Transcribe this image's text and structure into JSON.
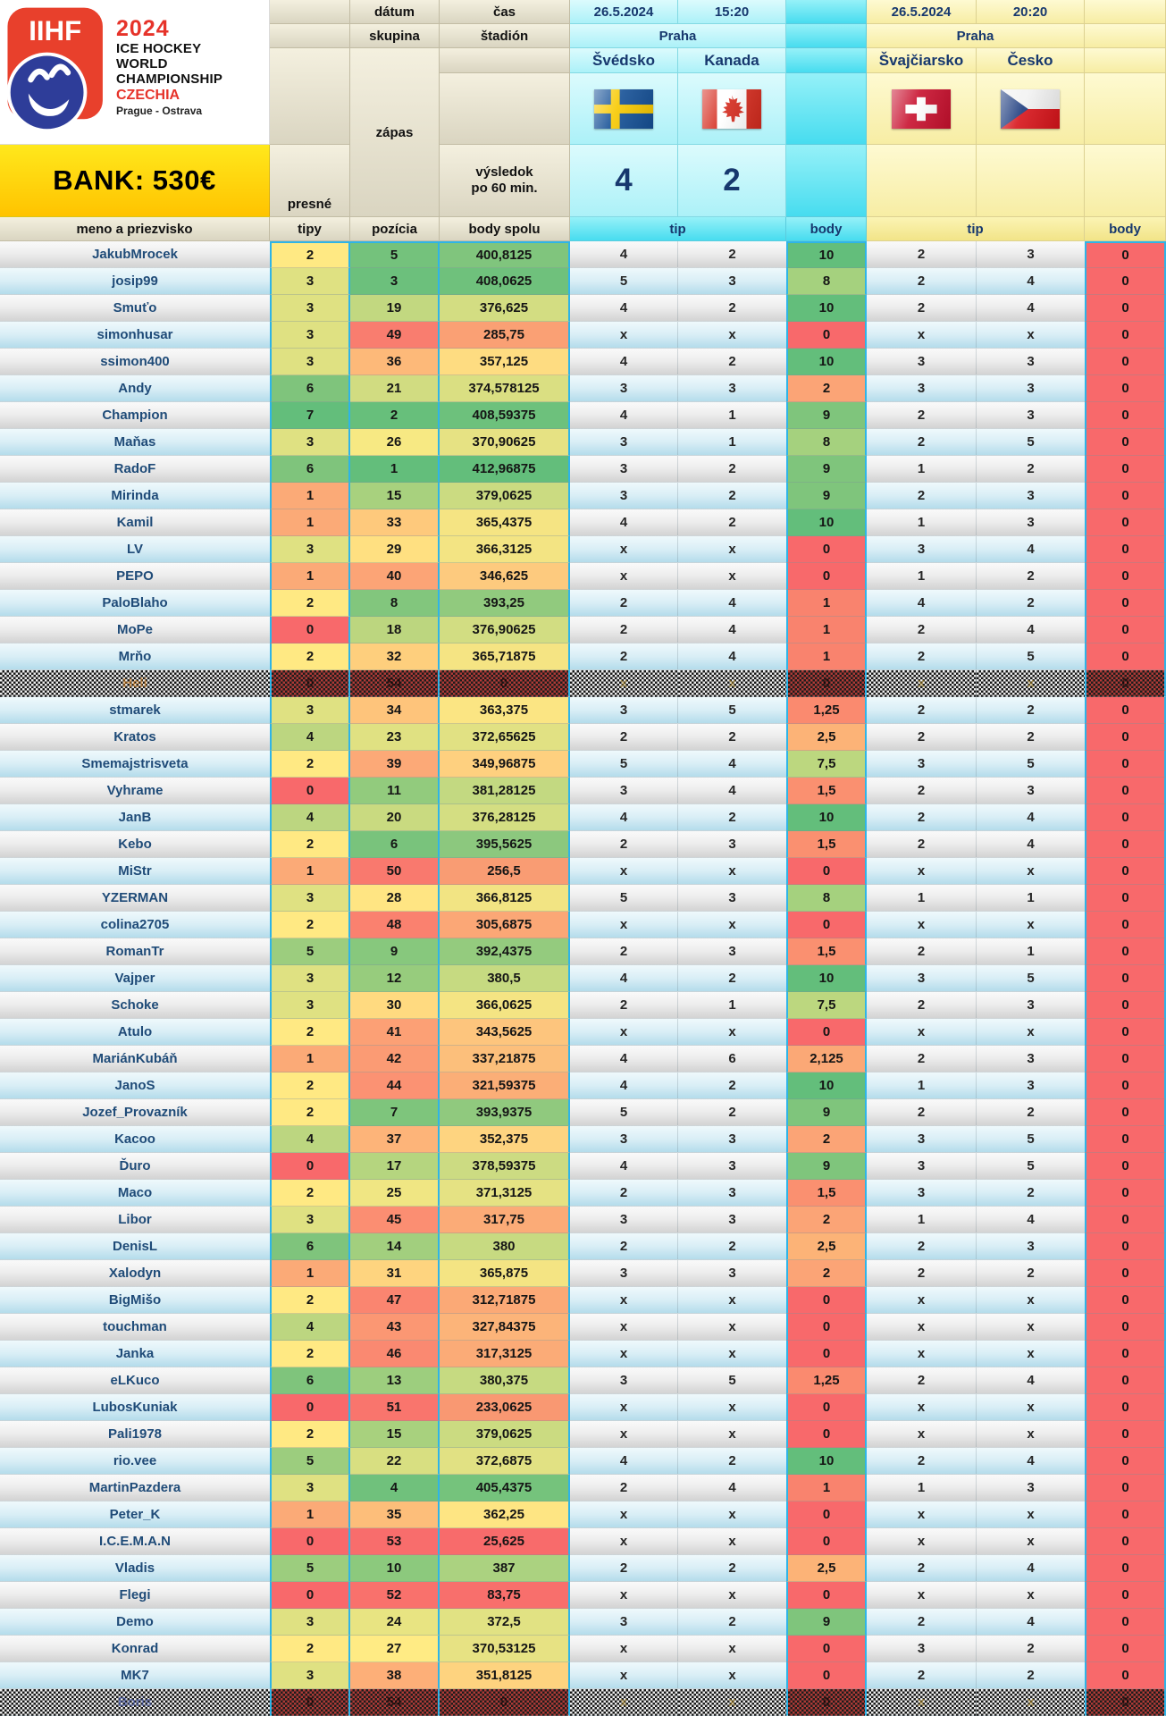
{
  "header": {
    "logo": {
      "iihf": "IIHF",
      "year": "2024",
      "title_lines": [
        "ICE HOCKEY",
        "WORLD",
        "CHAMPIONSHIP"
      ],
      "country": "CZECHIA",
      "cities": "Prague - Ostrava"
    },
    "bank": "BANK: 530€",
    "labels": {
      "datum": "dátum",
      "skupina": "skupina",
      "zapas": "zápas",
      "cas": "čas",
      "stadion": "štadión",
      "vysledok_line1": "výsledok",
      "vysledok_line2": "po 60 min.",
      "presne": "presné",
      "tipy": "tipy",
      "meno": "meno a priezvisko",
      "pozicia": "pozícia",
      "body_spolu": "body spolu",
      "tip": "tip",
      "body": "body"
    },
    "matches": [
      {
        "date": "26.5.2024",
        "time": "15:20",
        "venue": "Praha",
        "home": "Švédsko",
        "away": "Kanada",
        "home_flag": "sweden",
        "away_flag": "canada",
        "score_home": "4",
        "score_away": "2"
      },
      {
        "date": "26.5.2024",
        "time": "20:20",
        "venue": "Praha",
        "home": "Švajčiarsko",
        "away": "Česko",
        "home_flag": "switzerland",
        "away_flag": "czechia",
        "score_home": "",
        "score_away": ""
      }
    ],
    "accent_colors": {
      "cell_border_blue": "#2FB4E7",
      "scale_green": "#63BE7B",
      "scale_yellow": "#FFEB84",
      "scale_red": "#F8696B"
    }
  },
  "rows": [
    {
      "n": "JakubMrocek",
      "t": "2",
      "p": "5",
      "b": "400,8125",
      "m1": [
        "4",
        "2",
        "10"
      ],
      "m2": [
        "2",
        "3",
        "0"
      ]
    },
    {
      "n": "josip99",
      "t": "3",
      "p": "3",
      "b": "408,0625",
      "m1": [
        "5",
        "3",
        "8"
      ],
      "m2": [
        "2",
        "4",
        "0"
      ]
    },
    {
      "n": "Smuťo",
      "t": "3",
      "p": "19",
      "b": "376,625",
      "m1": [
        "4",
        "2",
        "10"
      ],
      "m2": [
        "2",
        "4",
        "0"
      ]
    },
    {
      "n": "simonhusar",
      "t": "3",
      "p": "49",
      "b": "285,75",
      "m1": [
        "x",
        "x",
        "0"
      ],
      "m2": [
        "x",
        "x",
        "0"
      ]
    },
    {
      "n": "ssimon400",
      "t": "3",
      "p": "36",
      "b": "357,125",
      "m1": [
        "4",
        "2",
        "10"
      ],
      "m2": [
        "3",
        "3",
        "0"
      ]
    },
    {
      "n": "Andy",
      "t": "6",
      "p": "21",
      "b": "374,578125",
      "m1": [
        "3",
        "3",
        "2"
      ],
      "m2": [
        "3",
        "3",
        "0"
      ]
    },
    {
      "n": "Champion",
      "t": "7",
      "p": "2",
      "b": "408,59375",
      "m1": [
        "4",
        "1",
        "9"
      ],
      "m2": [
        "2",
        "3",
        "0"
      ]
    },
    {
      "n": "Maňas",
      "t": "3",
      "p": "26",
      "b": "370,90625",
      "m1": [
        "3",
        "1",
        "8"
      ],
      "m2": [
        "2",
        "5",
        "0"
      ]
    },
    {
      "n": "RadoF",
      "t": "6",
      "p": "1",
      "b": "412,96875",
      "m1": [
        "3",
        "2",
        "9"
      ],
      "m2": [
        "1",
        "2",
        "0"
      ]
    },
    {
      "n": "Mirinda",
      "t": "1",
      "p": "15",
      "b": "379,0625",
      "m1": [
        "3",
        "2",
        "9"
      ],
      "m2": [
        "2",
        "3",
        "0"
      ]
    },
    {
      "n": "Kamil",
      "t": "1",
      "p": "33",
      "b": "365,4375",
      "m1": [
        "4",
        "2",
        "10"
      ],
      "m2": [
        "1",
        "3",
        "0"
      ]
    },
    {
      "n": "LV",
      "t": "3",
      "p": "29",
      "b": "366,3125",
      "m1": [
        "x",
        "x",
        "0"
      ],
      "m2": [
        "3",
        "4",
        "0"
      ]
    },
    {
      "n": "PEPO",
      "t": "1",
      "p": "40",
      "b": "346,625",
      "m1": [
        "x",
        "x",
        "0"
      ],
      "m2": [
        "1",
        "2",
        "0"
      ]
    },
    {
      "n": "PaloBlaho",
      "t": "2",
      "p": "8",
      "b": "393,25",
      "m1": [
        "2",
        "4",
        "1"
      ],
      "m2": [
        "4",
        "2",
        "0"
      ]
    },
    {
      "n": "MoPe",
      "t": "0",
      "p": "18",
      "b": "376,90625",
      "m1": [
        "2",
        "4",
        "1"
      ],
      "m2": [
        "2",
        "4",
        "0"
      ]
    },
    {
      "n": "Mrňo",
      "t": "2",
      "p": "32",
      "b": "365,71875",
      "m1": [
        "2",
        "4",
        "1"
      ],
      "m2": [
        "2",
        "5",
        "0"
      ]
    },
    {
      "n": "Heli",
      "t": "0",
      "p": "54",
      "b": "0",
      "m1": [
        "x",
        "x",
        "0"
      ],
      "m2": [
        "x",
        "x",
        "0"
      ],
      "obscured": true
    },
    {
      "n": "stmarek",
      "t": "3",
      "p": "34",
      "b": "363,375",
      "m1": [
        "3",
        "5",
        "1,25"
      ],
      "m2": [
        "2",
        "2",
        "0"
      ]
    },
    {
      "n": "Kratos",
      "t": "4",
      "p": "23",
      "b": "372,65625",
      "m1": [
        "2",
        "2",
        "2,5"
      ],
      "m2": [
        "2",
        "2",
        "0"
      ]
    },
    {
      "n": "Smemajstrisveta",
      "t": "2",
      "p": "39",
      "b": "349,96875",
      "m1": [
        "5",
        "4",
        "7,5"
      ],
      "m2": [
        "3",
        "5",
        "0"
      ]
    },
    {
      "n": "Vyhrame",
      "t": "0",
      "p": "11",
      "b": "381,28125",
      "m1": [
        "3",
        "4",
        "1,5"
      ],
      "m2": [
        "2",
        "3",
        "0"
      ]
    },
    {
      "n": "JanB",
      "t": "4",
      "p": "20",
      "b": "376,28125",
      "m1": [
        "4",
        "2",
        "10"
      ],
      "m2": [
        "2",
        "4",
        "0"
      ]
    },
    {
      "n": "Kebo",
      "t": "2",
      "p": "6",
      "b": "395,5625",
      "m1": [
        "2",
        "3",
        "1,5"
      ],
      "m2": [
        "2",
        "4",
        "0"
      ]
    },
    {
      "n": "MiStr",
      "t": "1",
      "p": "50",
      "b": "256,5",
      "m1": [
        "x",
        "x",
        "0"
      ],
      "m2": [
        "x",
        "x",
        "0"
      ]
    },
    {
      "n": "YZERMAN",
      "t": "3",
      "p": "28",
      "b": "366,8125",
      "m1": [
        "5",
        "3",
        "8"
      ],
      "m2": [
        "1",
        "1",
        "0"
      ]
    },
    {
      "n": "colina2705",
      "t": "2",
      "p": "48",
      "b": "305,6875",
      "m1": [
        "x",
        "x",
        "0"
      ],
      "m2": [
        "x",
        "x",
        "0"
      ]
    },
    {
      "n": "RomanTr",
      "t": "5",
      "p": "9",
      "b": "392,4375",
      "m1": [
        "2",
        "3",
        "1,5"
      ],
      "m2": [
        "2",
        "1",
        "0"
      ]
    },
    {
      "n": "Vajper",
      "t": "3",
      "p": "12",
      "b": "380,5",
      "m1": [
        "4",
        "2",
        "10"
      ],
      "m2": [
        "3",
        "5",
        "0"
      ]
    },
    {
      "n": "Schoke",
      "t": "3",
      "p": "30",
      "b": "366,0625",
      "m1": [
        "2",
        "1",
        "7,5"
      ],
      "m2": [
        "2",
        "3",
        "0"
      ]
    },
    {
      "n": "Atulo",
      "t": "2",
      "p": "41",
      "b": "343,5625",
      "m1": [
        "x",
        "x",
        "0"
      ],
      "m2": [
        "x",
        "x",
        "0"
      ]
    },
    {
      "n": "MariánKubáň",
      "t": "1",
      "p": "42",
      "b": "337,21875",
      "m1": [
        "4",
        "6",
        "2,125"
      ],
      "m2": [
        "2",
        "3",
        "0"
      ]
    },
    {
      "n": "JanoS",
      "t": "2",
      "p": "44",
      "b": "321,59375",
      "m1": [
        "4",
        "2",
        "10"
      ],
      "m2": [
        "1",
        "3",
        "0"
      ]
    },
    {
      "n": "Jozef_Provazník",
      "t": "2",
      "p": "7",
      "b": "393,9375",
      "m1": [
        "5",
        "2",
        "9"
      ],
      "m2": [
        "2",
        "2",
        "0"
      ]
    },
    {
      "n": "Kacoo",
      "t": "4",
      "p": "37",
      "b": "352,375",
      "m1": [
        "3",
        "3",
        "2"
      ],
      "m2": [
        "3",
        "5",
        "0"
      ]
    },
    {
      "n": "Ďuro",
      "t": "0",
      "p": "17",
      "b": "378,59375",
      "m1": [
        "4",
        "3",
        "9"
      ],
      "m2": [
        "3",
        "5",
        "0"
      ]
    },
    {
      "n": "Maco",
      "t": "2",
      "p": "25",
      "b": "371,3125",
      "m1": [
        "2",
        "3",
        "1,5"
      ],
      "m2": [
        "3",
        "2",
        "0"
      ]
    },
    {
      "n": "Libor",
      "t": "3",
      "p": "45",
      "b": "317,75",
      "m1": [
        "3",
        "3",
        "2"
      ],
      "m2": [
        "1",
        "4",
        "0"
      ]
    },
    {
      "n": "DenisL",
      "t": "6",
      "p": "14",
      "b": "380",
      "m1": [
        "2",
        "2",
        "2,5"
      ],
      "m2": [
        "2",
        "3",
        "0"
      ]
    },
    {
      "n": "Xalodyn",
      "t": "1",
      "p": "31",
      "b": "365,875",
      "m1": [
        "3",
        "3",
        "2"
      ],
      "m2": [
        "2",
        "2",
        "0"
      ]
    },
    {
      "n": "BigMišo",
      "t": "2",
      "p": "47",
      "b": "312,71875",
      "m1": [
        "x",
        "x",
        "0"
      ],
      "m2": [
        "x",
        "x",
        "0"
      ]
    },
    {
      "n": "touchman",
      "t": "4",
      "p": "43",
      "b": "327,84375",
      "m1": [
        "x",
        "x",
        "0"
      ],
      "m2": [
        "x",
        "x",
        "0"
      ]
    },
    {
      "n": "Janka",
      "t": "2",
      "p": "46",
      "b": "317,3125",
      "m1": [
        "x",
        "x",
        "0"
      ],
      "m2": [
        "x",
        "x",
        "0"
      ]
    },
    {
      "n": "eLKuco",
      "t": "6",
      "p": "13",
      "b": "380,375",
      "m1": [
        "3",
        "5",
        "1,25"
      ],
      "m2": [
        "2",
        "4",
        "0"
      ]
    },
    {
      "n": "LubosKuniak",
      "t": "0",
      "p": "51",
      "b": "233,0625",
      "m1": [
        "x",
        "x",
        "0"
      ],
      "m2": [
        "x",
        "x",
        "0"
      ]
    },
    {
      "n": "Pali1978",
      "t": "2",
      "p": "15",
      "b": "379,0625",
      "m1": [
        "x",
        "x",
        "0"
      ],
      "m2": [
        "x",
        "x",
        "0"
      ]
    },
    {
      "n": "rio.vee",
      "t": "5",
      "p": "22",
      "b": "372,6875",
      "m1": [
        "4",
        "2",
        "10"
      ],
      "m2": [
        "2",
        "4",
        "0"
      ]
    },
    {
      "n": "MartinPazdera",
      "t": "3",
      "p": "4",
      "b": "405,4375",
      "m1": [
        "2",
        "4",
        "1"
      ],
      "m2": [
        "1",
        "3",
        "0"
      ]
    },
    {
      "n": "Peter_K",
      "t": "1",
      "p": "35",
      "b": "362,25",
      "m1": [
        "x",
        "x",
        "0"
      ],
      "m2": [
        "x",
        "x",
        "0"
      ]
    },
    {
      "n": "I.C.E.M.A.N",
      "t": "0",
      "p": "53",
      "b": "25,625",
      "m1": [
        "x",
        "x",
        "0"
      ],
      "m2": [
        "x",
        "x",
        "0"
      ]
    },
    {
      "n": "Vladis",
      "t": "5",
      "p": "10",
      "b": "387",
      "m1": [
        "2",
        "2",
        "2,5"
      ],
      "m2": [
        "2",
        "4",
        "0"
      ]
    },
    {
      "n": "Flegi",
      "t": "0",
      "p": "52",
      "b": "83,75",
      "m1": [
        "x",
        "x",
        "0"
      ],
      "m2": [
        "x",
        "x",
        "0"
      ]
    },
    {
      "n": "Demo",
      "t": "3",
      "p": "24",
      "b": "372,5",
      "m1": [
        "3",
        "2",
        "9"
      ],
      "m2": [
        "2",
        "4",
        "0"
      ]
    },
    {
      "n": "Konrad",
      "t": "2",
      "p": "27",
      "b": "370,53125",
      "m1": [
        "x",
        "x",
        "0"
      ],
      "m2": [
        "3",
        "2",
        "0"
      ]
    },
    {
      "n": "MK7",
      "t": "3",
      "p": "38",
      "b": "351,8125",
      "m1": [
        "x",
        "x",
        "0"
      ],
      "m2": [
        "2",
        "2",
        "0"
      ]
    },
    {
      "n": "Boris",
      "t": "0",
      "p": "54",
      "b": "0",
      "m1": [
        "x",
        "x",
        "0"
      ],
      "m2": [
        "x",
        "x",
        "0"
      ],
      "obscured": true
    }
  ]
}
